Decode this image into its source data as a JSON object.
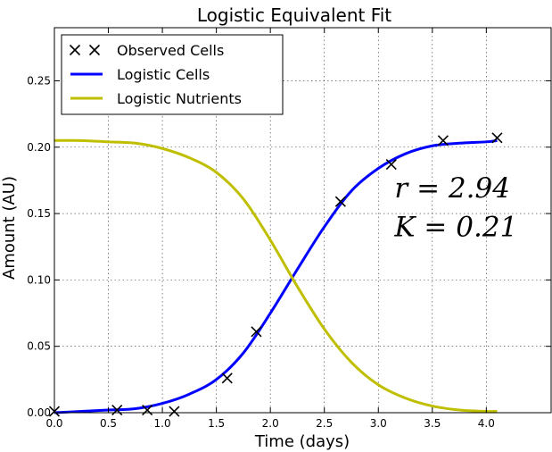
{
  "chart_data": {
    "type": "line",
    "title": "Logistic Equivalent Fit",
    "xlabel": "Time (days)",
    "ylabel": "Amount (AU)",
    "xlim": [
      0.0,
      4.6
    ],
    "ylim": [
      0.0,
      0.29
    ],
    "xticks": [
      0.0,
      0.5,
      1.0,
      1.5,
      2.0,
      2.5,
      3.0,
      3.5,
      4.0
    ],
    "xtick_labels": [
      "0.0",
      "0.5",
      "1.0",
      "1.5",
      "2.0",
      "2.5",
      "3.0",
      "3.5",
      "4.0"
    ],
    "yticks": [
      0.0,
      0.05,
      0.1,
      0.15,
      0.2,
      0.25
    ],
    "ytick_labels": [
      "0.00",
      "0.05",
      "0.10",
      "0.15",
      "0.20",
      "0.25"
    ],
    "grid": true,
    "legend_position": "top-left",
    "series": [
      {
        "name": "Observed Cells",
        "kind": "scatter",
        "marker": "x",
        "color": "#000000",
        "x": [
          0.0,
          0.58,
          0.86,
          1.11,
          1.6,
          1.87,
          2.65,
          3.12,
          3.6,
          4.1
        ],
        "y": [
          0.001,
          0.002,
          0.002,
          0.001,
          0.026,
          0.061,
          0.159,
          0.187,
          0.205,
          0.207
        ]
      },
      {
        "name": "Logistic Cells",
        "kind": "line",
        "color": "#0000ff",
        "x": [
          0.0,
          0.25,
          0.5,
          0.75,
          1.0,
          1.25,
          1.5,
          1.75,
          2.0,
          2.25,
          2.5,
          2.75,
          3.0,
          3.25,
          3.5,
          3.75,
          4.0,
          4.1
        ],
        "y": [
          0.0,
          0.001,
          0.002,
          0.003,
          0.007,
          0.014,
          0.025,
          0.045,
          0.075,
          0.108,
          0.14,
          0.167,
          0.184,
          0.195,
          0.201,
          0.203,
          0.204,
          0.205
        ]
      },
      {
        "name": "Logistic Nutrients",
        "kind": "line",
        "color": "#bfbf00",
        "x": [
          0.0,
          0.25,
          0.5,
          0.75,
          1.0,
          1.25,
          1.5,
          1.75,
          2.0,
          2.25,
          2.5,
          2.75,
          3.0,
          3.25,
          3.5,
          3.75,
          4.0,
          4.1
        ],
        "y": [
          0.205,
          0.205,
          0.204,
          0.203,
          0.199,
          0.192,
          0.181,
          0.161,
          0.13,
          0.095,
          0.063,
          0.038,
          0.021,
          0.011,
          0.005,
          0.002,
          0.001,
          0.001
        ]
      }
    ],
    "annotations": [
      {
        "text": "r = 2.94",
        "x": 3.15,
        "y": 0.162
      },
      {
        "text": "K = 0.21",
        "x": 3.15,
        "y": 0.133
      }
    ]
  }
}
